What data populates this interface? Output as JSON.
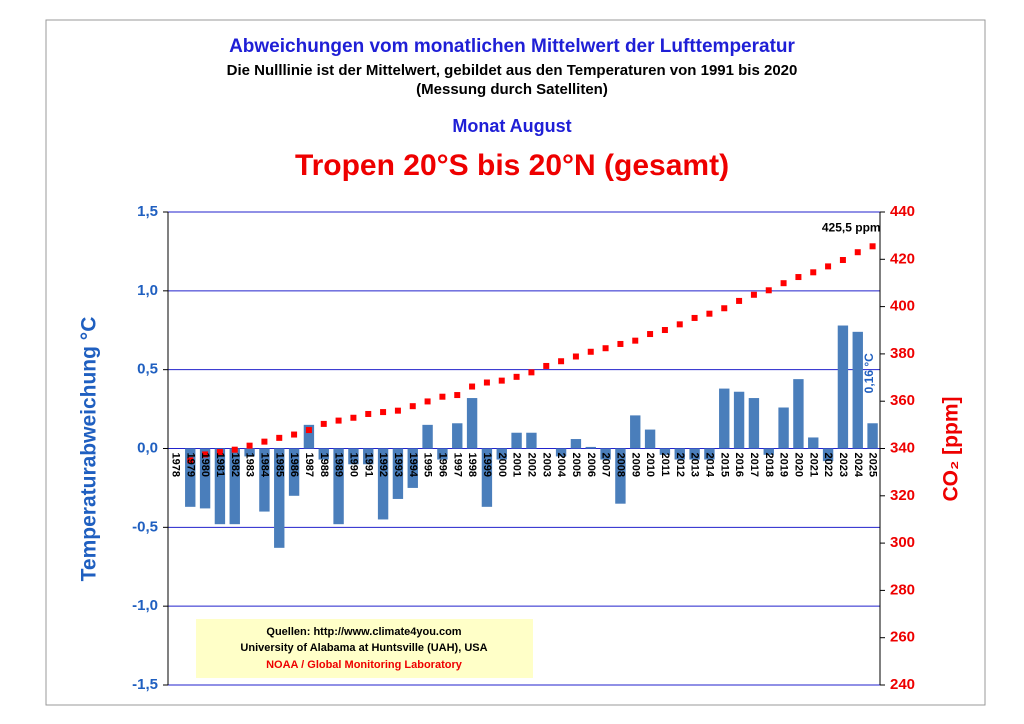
{
  "chart_data": {
    "type": "bar",
    "title": "Abweichungen vom monatlichen Mittelwert der Lufttemperatur",
    "subtitle": "Die Nulllinie ist der Mittelwert, gebildet aus den Temperaturen von 1991 bis 2020",
    "subtitle2": "(Messung durch Satelliten)",
    "month": "Monat August",
    "region": "Tropen 20°S bis 20°N  (gesamt)",
    "y_label": "Temperaturabweichung °C",
    "y2_label": "CO₂ [ppm]",
    "sources": [
      "Quellen: http://www.climate4you.com",
      "University of Alabama at Huntsville (UAH), USA",
      "NOAA / Global Monitoring Laboratory"
    ],
    "categories": [
      "1978",
      "1979",
      "1980",
      "1981",
      "1982",
      "1983",
      "1984",
      "1985",
      "1986",
      "1987",
      "1988",
      "1989",
      "1990",
      "1991",
      "1992",
      "1993",
      "1994",
      "1995",
      "1996",
      "1997",
      "1998",
      "1999",
      "2000",
      "2001",
      "2002",
      "2003",
      "2004",
      "2005",
      "2006",
      "2007",
      "2008",
      "2009",
      "2010",
      "2011",
      "2012",
      "2013",
      "2014",
      "2015",
      "2016",
      "2017",
      "2018",
      "2019",
      "2020",
      "2021",
      "2022",
      "2023",
      "2024",
      "2025"
    ],
    "series": [
      {
        "name": "Temperaturabweichung",
        "color": "#4a7ebb",
        "values": [
          null,
          -0.37,
          -0.38,
          -0.48,
          -0.48,
          -0.05,
          -0.4,
          -0.63,
          -0.3,
          0.15,
          -0.07,
          -0.48,
          -0.1,
          -0.1,
          -0.45,
          -0.32,
          -0.25,
          0.15,
          -0.07,
          0.16,
          0.32,
          -0.37,
          -0.07,
          0.1,
          0.1,
          0.0,
          -0.05,
          0.06,
          0.01,
          -0.07,
          -0.35,
          0.21,
          0.12,
          -0.04,
          -0.07,
          -0.07,
          -0.07,
          0.38,
          0.36,
          0.32,
          -0.04,
          0.26,
          0.44,
          0.07,
          -0.08,
          0.78,
          0.74,
          0.16
        ],
        "value_labels": [
          null,
          null,
          null,
          null,
          null,
          null,
          null,
          null,
          null,
          null,
          null,
          null,
          null,
          null,
          null,
          null,
          null,
          null,
          null,
          null,
          null,
          null,
          null,
          null,
          null,
          null,
          null,
          null,
          null,
          null,
          null,
          null,
          null,
          null,
          null,
          null,
          null,
          null,
          null,
          null,
          null,
          null,
          null,
          null,
          null,
          null,
          null,
          "0,16 °C"
        ]
      },
      {
        "name": "CO2",
        "color": "#ff0000",
        "axis": "y2",
        "type": "dots",
        "values": [
          null,
          335.0,
          337.5,
          338.5,
          339.5,
          341.2,
          342.9,
          344.5,
          345.9,
          347.8,
          350.4,
          351.8,
          353.0,
          354.6,
          355.4,
          356.0,
          357.9,
          359.9,
          361.9,
          362.6,
          366.2,
          367.9,
          368.7,
          370.3,
          372.2,
          374.9,
          376.9,
          378.9,
          380.9,
          382.4,
          384.2,
          385.6,
          388.4,
          390.1,
          392.5,
          395.2,
          397.0,
          399.3,
          402.4,
          405.0,
          406.9,
          409.9,
          412.5,
          414.5,
          417.0,
          419.7,
          423.0,
          425.5
        ],
        "value_labels": [
          null,
          null,
          null,
          null,
          null,
          null,
          null,
          null,
          null,
          null,
          null,
          null,
          null,
          null,
          null,
          null,
          null,
          null,
          null,
          null,
          null,
          null,
          null,
          null,
          null,
          null,
          null,
          null,
          null,
          null,
          null,
          null,
          null,
          null,
          null,
          null,
          null,
          null,
          null,
          null,
          null,
          null,
          null,
          null,
          null,
          null,
          null,
          "425,5 ppm"
        ]
      }
    ],
    "ylim": [
      -1.5,
      1.5
    ],
    "yticks": [
      {
        "value": -1.5,
        "label": "-1,5"
      },
      {
        "value": -1.0,
        "label": "-1,0"
      },
      {
        "value": -0.5,
        "label": "-0,5"
      },
      {
        "value": 0.0,
        "label": "0,0"
      },
      {
        "value": 0.5,
        "label": "0,5"
      },
      {
        "value": 1.0,
        "label": "1,0"
      },
      {
        "value": 1.5,
        "label": "1,5"
      }
    ],
    "y2lim": [
      240,
      440
    ],
    "y2ticks": [
      240,
      260,
      280,
      300,
      320,
      340,
      360,
      380,
      400,
      420,
      440
    ],
    "grid": true
  }
}
